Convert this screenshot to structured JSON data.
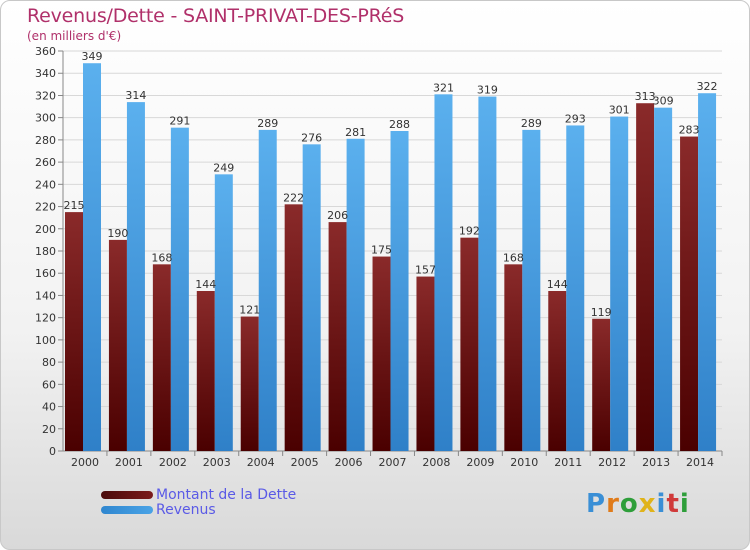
{
  "chart_data": {
    "type": "bar",
    "title": "Revenus/Dette - SAINT-PRIVAT-DES-PRéS",
    "subtitle": "(en milliers d'€)",
    "categories": [
      "2000",
      "2001",
      "2002",
      "2003",
      "2004",
      "2005",
      "2006",
      "2007",
      "2008",
      "2009",
      "2010",
      "2011",
      "2012",
      "2013",
      "2014"
    ],
    "series": [
      {
        "name": "Montant de la Dette",
        "color": "#7b1d1d",
        "values": [
          215,
          190,
          168,
          144,
          121,
          222,
          206,
          175,
          157,
          192,
          168,
          144,
          119,
          313,
          283
        ]
      },
      {
        "name": "Revenus",
        "color": "#4aa3e6",
        "values": [
          349,
          314,
          291,
          249,
          289,
          276,
          281,
          288,
          321,
          319,
          289,
          293,
          301,
          309,
          322
        ]
      }
    ],
    "ylim": [
      0,
      360
    ],
    "y_tick_step": 20,
    "grid": true,
    "legend_placement": "bottom-left"
  },
  "logo": {
    "letters": [
      "P",
      "r",
      "o",
      "x",
      "i",
      "t",
      "i"
    ],
    "colors": [
      "#3a8fd6",
      "#e07b1a",
      "#2e9e3a",
      "#e0b31a",
      "#3a8fd6",
      "#d03a3a",
      "#2e9e3a"
    ]
  }
}
